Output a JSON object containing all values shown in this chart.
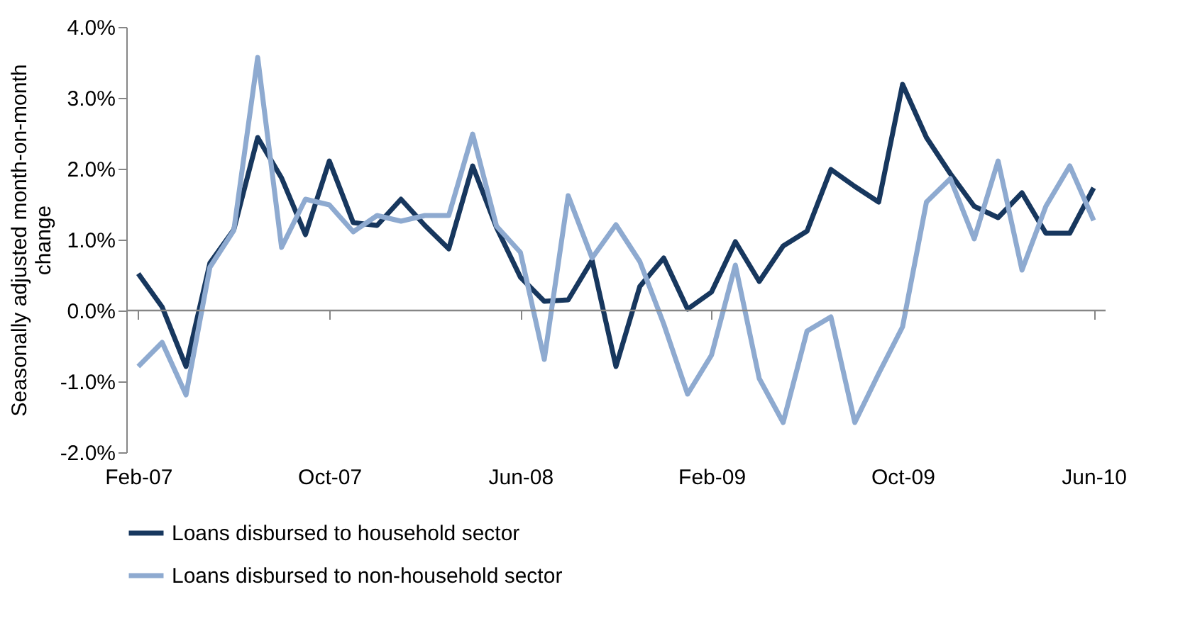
{
  "chart_data": {
    "type": "line",
    "categories": [
      "Feb-07",
      null,
      null,
      null,
      null,
      null,
      null,
      null,
      "Oct-07",
      null,
      null,
      null,
      null,
      null,
      null,
      null,
      "Jun-08",
      null,
      null,
      null,
      null,
      null,
      null,
      null,
      "Feb-09",
      null,
      null,
      null,
      null,
      null,
      null,
      null,
      "Oct-09",
      null,
      null,
      null,
      null,
      null,
      null,
      null,
      "Jun-10"
    ],
    "ylabel": "Seasonally adjusted month-on-month change",
    "ylim": [
      -2,
      4
    ],
    "yticks": [
      {
        "value": -2,
        "label": "-2.0%"
      },
      {
        "value": -1,
        "label": "-1.0%"
      },
      {
        "value": 0,
        "label": "0.0%"
      },
      {
        "value": 1,
        "label": "1.0%"
      },
      {
        "value": 2,
        "label": "2.0%"
      },
      {
        "value": 3,
        "label": "3.0%"
      },
      {
        "value": 4,
        "label": "4.0%"
      }
    ],
    "series": [
      {
        "name": "Loans disbursed to household sector",
        "color": "#17375e",
        "values": [
          0.52,
          0.05,
          -0.79,
          0.67,
          1.14,
          2.44,
          1.87,
          1.07,
          2.11,
          1.24,
          1.2,
          1.57,
          1.2,
          0.87,
          2.04,
          1.17,
          0.47,
          0.13,
          0.15,
          0.71,
          -0.79,
          0.34,
          0.74,
          0.02,
          0.26,
          0.97,
          0.41,
          0.91,
          1.12,
          1.99,
          1.75,
          1.53,
          3.19,
          2.44,
          1.93,
          1.47,
          1.31,
          1.66,
          1.09,
          1.09,
          1.73
        ]
      },
      {
        "name": "Loans disbursed to non-household sector",
        "color": "#8eaad0",
        "values": [
          -0.79,
          -0.45,
          -1.19,
          0.61,
          1.13,
          3.57,
          0.89,
          1.57,
          1.49,
          1.11,
          1.34,
          1.26,
          1.34,
          1.34,
          2.49,
          1.19,
          0.82,
          -0.69,
          1.62,
          0.74,
          1.21,
          0.69,
          -0.19,
          -1.18,
          -0.63,
          0.64,
          -0.96,
          -1.58,
          -0.29,
          -0.09,
          -1.58,
          -0.89,
          -0.23,
          1.53,
          1.86,
          1.01,
          2.11,
          0.57,
          1.47,
          2.04,
          1.27
        ]
      }
    ],
    "ref_lines": [
      {
        "axis": "y",
        "value": 0,
        "color": "#868686"
      }
    ],
    "legend": "bottom",
    "grid": false,
    "marker": "none",
    "line_style": "solid"
  }
}
